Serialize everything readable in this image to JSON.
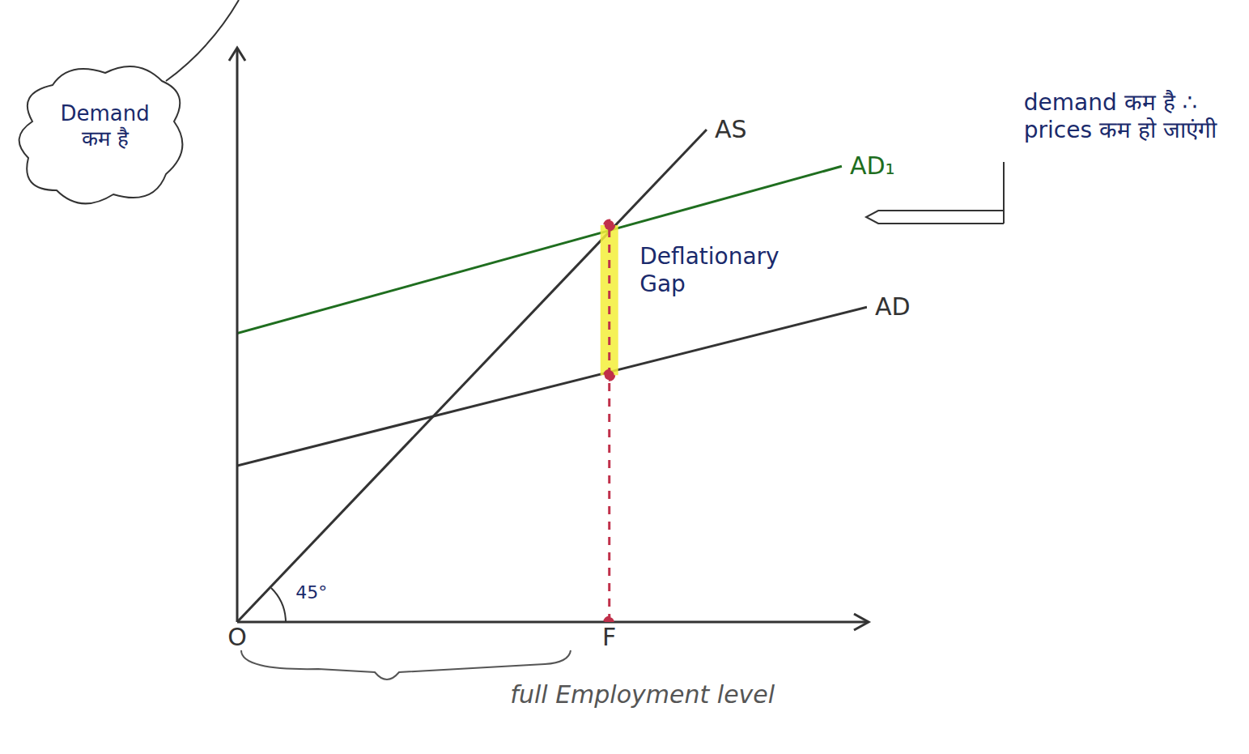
{
  "chart_data": {
    "type": "line",
    "series": [
      {
        "name": "AS",
        "color": "#333333",
        "x": [
          0,
          82
        ],
        "values": [
          0,
          86
        ]
      },
      {
        "name": "AD₁",
        "color": "#1f6e1f",
        "x": [
          0,
          105.6
        ],
        "values": [
          50.4,
          79.6
        ]
      },
      {
        "name": "AD",
        "color": "#333333",
        "x": [
          0,
          110
        ],
        "values": [
          27.3,
          55
        ]
      },
      {
        "color": "#f3ee3a",
        "x": [
          65,
          65
        ],
        "values": [
          43.1,
          69.3
        ]
      },
      {
        "color": "#c0304a",
        "line_style": "dashed",
        "marker": "circle",
        "x": [
          65,
          65,
          65
        ],
        "values": [
          0,
          43.1,
          69.3
        ]
      }
    ],
    "xlim": [
      0,
      110
    ],
    "xticks": [
      {
        "value": 0,
        "label": "O"
      },
      {
        "value": 65,
        "label": "F"
      }
    ],
    "ylim": [
      0,
      100
    ],
    "tick_labels": "x",
    "grid": false,
    "annotations": [
      {
        "text": "Deflationary Gap",
        "x": 70.3,
        "y": 66.2
      },
      {
        "text": "demand कम है ∴ prices कम हो जाएंगी",
        "x": 137.4,
        "y": 93
      },
      {
        "text": "Demand कम है",
        "x": -33.7,
        "y": 91
      },
      {
        "text": "45°",
        "x": 10.2,
        "y": 7
      },
      {
        "text": "full Employment level",
        "x": 47.7,
        "y": -10.2
      }
    ]
  }
}
